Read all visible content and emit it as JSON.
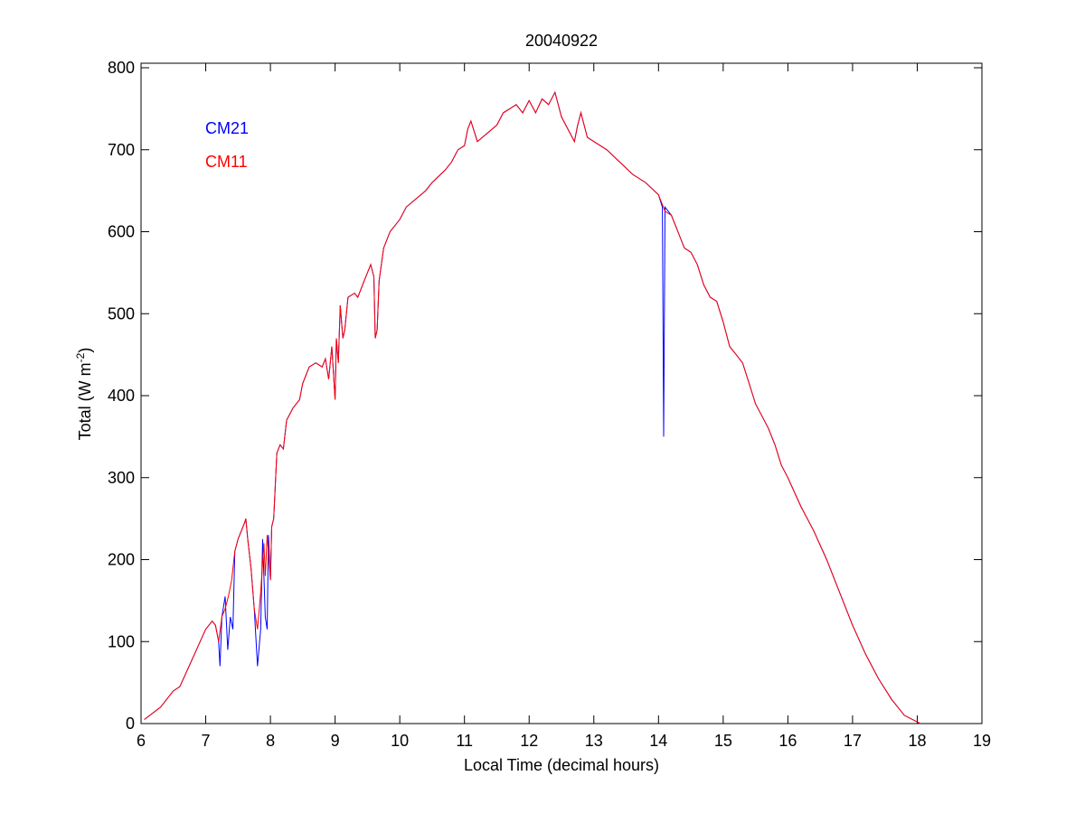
{
  "chart_data": {
    "type": "line",
    "title": "20040922",
    "xlabel": "Local Time (decimal hours)",
    "ylabel_main": "Total (W m",
    "ylabel_sup": "-2",
    "ylabel_close": ")",
    "xlim": [
      6,
      19
    ],
    "ylim": [
      0,
      800
    ],
    "xticks": [
      6,
      7,
      8,
      9,
      10,
      11,
      12,
      13,
      14,
      15,
      16,
      17,
      18,
      19
    ],
    "yticks": [
      0,
      100,
      200,
      300,
      400,
      500,
      600,
      700,
      800
    ],
    "grid": false,
    "legend_placement": "top-left",
    "series": [
      {
        "name": "CM21",
        "color": "#0000ff",
        "points": [
          [
            6.05,
            5
          ],
          [
            6.3,
            20
          ],
          [
            6.5,
            40
          ],
          [
            6.6,
            45
          ],
          [
            6.8,
            80
          ],
          [
            7.0,
            115
          ],
          [
            7.1,
            125
          ],
          [
            7.15,
            120
          ],
          [
            7.2,
            100
          ],
          [
            7.22,
            70
          ],
          [
            7.25,
            130
          ],
          [
            7.3,
            155
          ],
          [
            7.34,
            90
          ],
          [
            7.38,
            130
          ],
          [
            7.42,
            115
          ],
          [
            7.45,
            210
          ],
          [
            7.5,
            225
          ],
          [
            7.6,
            245
          ],
          [
            7.62,
            250
          ],
          [
            7.65,
            225
          ],
          [
            7.7,
            190
          ],
          [
            7.75,
            140
          ],
          [
            7.8,
            70
          ],
          [
            7.85,
            115
          ],
          [
            7.88,
            225
          ],
          [
            7.92,
            130
          ],
          [
            7.95,
            115
          ],
          [
            7.97,
            230
          ],
          [
            8.0,
            175
          ],
          [
            8.02,
            240
          ],
          [
            8.05,
            250
          ],
          [
            8.1,
            330
          ],
          [
            8.15,
            340
          ],
          [
            8.2,
            335
          ],
          [
            8.25,
            370
          ],
          [
            8.35,
            385
          ],
          [
            8.45,
            395
          ],
          [
            8.5,
            415
          ],
          [
            8.6,
            435
          ],
          [
            8.7,
            440
          ],
          [
            8.8,
            435
          ],
          [
            8.85,
            445
          ],
          [
            8.9,
            420
          ],
          [
            8.95,
            460
          ],
          [
            9.0,
            395
          ],
          [
            9.02,
            470
          ],
          [
            9.05,
            440
          ],
          [
            9.08,
            510
          ],
          [
            9.12,
            470
          ],
          [
            9.15,
            480
          ],
          [
            9.2,
            520
          ],
          [
            9.3,
            525
          ],
          [
            9.35,
            520
          ],
          [
            9.45,
            540
          ],
          [
            9.55,
            560
          ],
          [
            9.6,
            545
          ],
          [
            9.62,
            470
          ],
          [
            9.65,
            480
          ],
          [
            9.68,
            540
          ],
          [
            9.75,
            580
          ],
          [
            9.85,
            600
          ],
          [
            10.0,
            615
          ],
          [
            10.1,
            630
          ],
          [
            10.25,
            640
          ],
          [
            10.4,
            650
          ],
          [
            10.5,
            660
          ],
          [
            10.7,
            675
          ],
          [
            10.8,
            685
          ],
          [
            10.9,
            700
          ],
          [
            11.0,
            705
          ],
          [
            11.05,
            725
          ],
          [
            11.1,
            735
          ],
          [
            11.2,
            710
          ],
          [
            11.35,
            720
          ],
          [
            11.5,
            730
          ],
          [
            11.6,
            745
          ],
          [
            11.7,
            750
          ],
          [
            11.8,
            755
          ],
          [
            11.9,
            745
          ],
          [
            12.0,
            760
          ],
          [
            12.1,
            745
          ],
          [
            12.2,
            762
          ],
          [
            12.3,
            755
          ],
          [
            12.4,
            770
          ],
          [
            12.5,
            740
          ],
          [
            12.6,
            725
          ],
          [
            12.7,
            710
          ],
          [
            12.75,
            730
          ],
          [
            12.8,
            745
          ],
          [
            12.9,
            715
          ],
          [
            13.0,
            710
          ],
          [
            13.2,
            700
          ],
          [
            13.4,
            685
          ],
          [
            13.6,
            670
          ],
          [
            13.8,
            660
          ],
          [
            14.0,
            645
          ],
          [
            14.06,
            630
          ],
          [
            14.08,
            350
          ],
          [
            14.1,
            630
          ],
          [
            14.2,
            620
          ],
          [
            14.3,
            600
          ],
          [
            14.4,
            580
          ],
          [
            14.5,
            575
          ],
          [
            14.6,
            560
          ],
          [
            14.7,
            535
          ],
          [
            14.8,
            520
          ],
          [
            14.9,
            515
          ],
          [
            15.0,
            490
          ],
          [
            15.1,
            460
          ],
          [
            15.2,
            450
          ],
          [
            15.3,
            440
          ],
          [
            15.4,
            415
          ],
          [
            15.5,
            390
          ],
          [
            15.6,
            375
          ],
          [
            15.7,
            360
          ],
          [
            15.8,
            340
          ],
          [
            15.9,
            315
          ],
          [
            16.0,
            300
          ],
          [
            16.2,
            265
          ],
          [
            16.4,
            235
          ],
          [
            16.6,
            200
          ],
          [
            16.8,
            160
          ],
          [
            17.0,
            120
          ],
          [
            17.2,
            85
          ],
          [
            17.4,
            55
          ],
          [
            17.6,
            30
          ],
          [
            17.8,
            10
          ],
          [
            18.0,
            2
          ],
          [
            18.05,
            0
          ]
        ]
      },
      {
        "name": "CM11",
        "color": "#ff0000",
        "points": [
          [
            6.05,
            5
          ],
          [
            6.3,
            20
          ],
          [
            6.5,
            40
          ],
          [
            6.6,
            45
          ],
          [
            6.8,
            80
          ],
          [
            7.0,
            115
          ],
          [
            7.1,
            125
          ],
          [
            7.15,
            120
          ],
          [
            7.2,
            100
          ],
          [
            7.25,
            130
          ],
          [
            7.3,
            140
          ],
          [
            7.35,
            155
          ],
          [
            7.4,
            175
          ],
          [
            7.45,
            210
          ],
          [
            7.5,
            225
          ],
          [
            7.6,
            245
          ],
          [
            7.62,
            250
          ],
          [
            7.65,
            225
          ],
          [
            7.7,
            190
          ],
          [
            7.75,
            140
          ],
          [
            7.8,
            115
          ],
          [
            7.85,
            160
          ],
          [
            7.9,
            220
          ],
          [
            7.92,
            180
          ],
          [
            7.95,
            230
          ],
          [
            8.0,
            175
          ],
          [
            8.02,
            240
          ],
          [
            8.05,
            250
          ],
          [
            8.1,
            330
          ],
          [
            8.15,
            340
          ],
          [
            8.2,
            335
          ],
          [
            8.25,
            370
          ],
          [
            8.35,
            385
          ],
          [
            8.45,
            395
          ],
          [
            8.5,
            415
          ],
          [
            8.6,
            435
          ],
          [
            8.7,
            440
          ],
          [
            8.8,
            435
          ],
          [
            8.85,
            445
          ],
          [
            8.9,
            420
          ],
          [
            8.95,
            460
          ],
          [
            9.0,
            395
          ],
          [
            9.02,
            470
          ],
          [
            9.05,
            440
          ],
          [
            9.08,
            510
          ],
          [
            9.12,
            470
          ],
          [
            9.15,
            480
          ],
          [
            9.2,
            520
          ],
          [
            9.3,
            525
          ],
          [
            9.35,
            520
          ],
          [
            9.45,
            540
          ],
          [
            9.55,
            560
          ],
          [
            9.6,
            545
          ],
          [
            9.62,
            470
          ],
          [
            9.65,
            480
          ],
          [
            9.68,
            540
          ],
          [
            9.75,
            580
          ],
          [
            9.85,
            600
          ],
          [
            10.0,
            615
          ],
          [
            10.1,
            630
          ],
          [
            10.25,
            640
          ],
          [
            10.4,
            650
          ],
          [
            10.5,
            660
          ],
          [
            10.7,
            675
          ],
          [
            10.8,
            685
          ],
          [
            10.9,
            700
          ],
          [
            11.0,
            705
          ],
          [
            11.05,
            725
          ],
          [
            11.1,
            735
          ],
          [
            11.2,
            710
          ],
          [
            11.35,
            720
          ],
          [
            11.5,
            730
          ],
          [
            11.6,
            745
          ],
          [
            11.7,
            750
          ],
          [
            11.8,
            755
          ],
          [
            11.9,
            745
          ],
          [
            12.0,
            760
          ],
          [
            12.1,
            745
          ],
          [
            12.2,
            762
          ],
          [
            12.3,
            755
          ],
          [
            12.4,
            770
          ],
          [
            12.5,
            740
          ],
          [
            12.6,
            725
          ],
          [
            12.7,
            710
          ],
          [
            12.75,
            730
          ],
          [
            12.8,
            745
          ],
          [
            12.9,
            715
          ],
          [
            13.0,
            710
          ],
          [
            13.2,
            700
          ],
          [
            13.4,
            685
          ],
          [
            13.6,
            670
          ],
          [
            13.8,
            660
          ],
          [
            14.0,
            645
          ],
          [
            14.1,
            625
          ],
          [
            14.2,
            620
          ],
          [
            14.3,
            600
          ],
          [
            14.4,
            580
          ],
          [
            14.5,
            575
          ],
          [
            14.6,
            560
          ],
          [
            14.7,
            535
          ],
          [
            14.8,
            520
          ],
          [
            14.9,
            515
          ],
          [
            15.0,
            490
          ],
          [
            15.1,
            460
          ],
          [
            15.2,
            450
          ],
          [
            15.3,
            440
          ],
          [
            15.4,
            415
          ],
          [
            15.5,
            390
          ],
          [
            15.6,
            375
          ],
          [
            15.7,
            360
          ],
          [
            15.8,
            340
          ],
          [
            15.9,
            315
          ],
          [
            16.0,
            300
          ],
          [
            16.2,
            265
          ],
          [
            16.4,
            235
          ],
          [
            16.6,
            200
          ],
          [
            16.8,
            160
          ],
          [
            17.0,
            120
          ],
          [
            17.2,
            85
          ],
          [
            17.4,
            55
          ],
          [
            17.6,
            30
          ],
          [
            17.8,
            10
          ],
          [
            18.0,
            2
          ],
          [
            18.05,
            0
          ]
        ]
      }
    ]
  }
}
